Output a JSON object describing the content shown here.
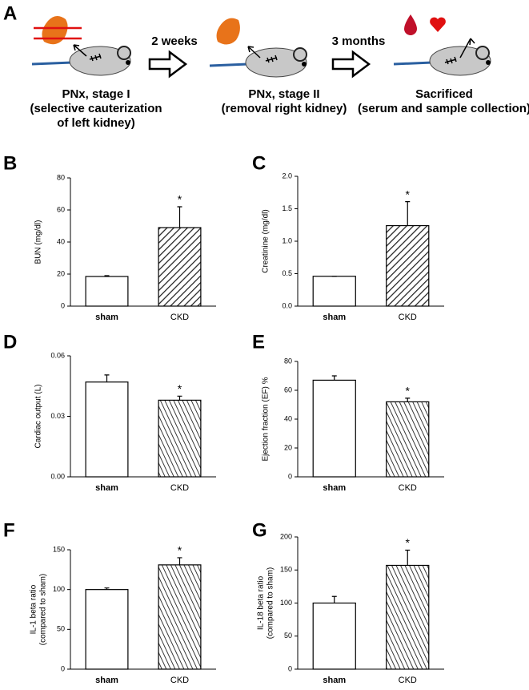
{
  "schematic": {
    "panel": "A",
    "steps": [
      [
        "PNx, stage I",
        "(selective cauterization",
        "of left kidney)"
      ],
      [
        "PNx, stage II",
        "(removal right kidney)"
      ],
      [
        "Sacrificed",
        "(serum and sample collection)"
      ]
    ],
    "intervals": [
      "2 weeks",
      "3 months"
    ]
  },
  "chart_data": [
    {
      "type": "bar",
      "panel": "B",
      "ylabel": [
        "BUN (mg/dl)"
      ],
      "categories": [
        "sham",
        "CKD"
      ],
      "values": [
        18.5,
        49
      ],
      "errors": [
        0.5,
        13
      ],
      "annotation": "*",
      "ylim": [
        0,
        80
      ],
      "yticks": [
        0,
        20,
        40,
        60,
        80
      ]
    },
    {
      "type": "bar",
      "panel": "C",
      "ylabel": [
        "Creatinine (mg/dl)"
      ],
      "categories": [
        "sham",
        "CKD"
      ],
      "values": [
        0.46,
        1.24
      ],
      "errors": [
        0,
        0.37
      ],
      "annotation": "*",
      "ylim": [
        0,
        2
      ],
      "yticks": [
        {
          "value": 0,
          "label": "0.0"
        },
        {
          "value": 0.5,
          "label": "0.5"
        },
        {
          "value": 1,
          "label": "1.0"
        },
        {
          "value": 1.5,
          "label": "1.5"
        },
        {
          "value": 2,
          "label": "2.0"
        }
      ]
    },
    {
      "type": "bar",
      "panel": "D",
      "ylabel": [
        "Cardiac output (L)"
      ],
      "categories": [
        "sham",
        "CKD"
      ],
      "values": [
        0.047,
        0.038
      ],
      "errors": [
        0.0035,
        0.002
      ],
      "annotation": "*",
      "ylim": [
        0,
        0.06
      ],
      "yticks": [
        {
          "value": 0,
          "label": "0.00"
        },
        {
          "value": 0.03,
          "label": "0.03"
        },
        {
          "value": 0.06,
          "label": "0.06"
        }
      ]
    },
    {
      "type": "bar",
      "panel": "E",
      "ylabel": [
        "Ejection fraction (EF) %"
      ],
      "categories": [
        "sham",
        "CKD"
      ],
      "values": [
        67,
        52
      ],
      "errors": [
        3,
        2.5
      ],
      "annotation": "*",
      "ylim": [
        0,
        80
      ],
      "yticks": [
        0,
        20,
        40,
        60,
        80
      ]
    },
    {
      "type": "bar",
      "panel": "F",
      "ylabel": [
        "IL-1 beta ratio",
        "(compared to sham)"
      ],
      "categories": [
        "sham",
        "CKD"
      ],
      "values": [
        100,
        131
      ],
      "errors": [
        2,
        9
      ],
      "annotation": "*",
      "ylim": [
        0,
        150
      ],
      "yticks": [
        0,
        50,
        100,
        150
      ]
    },
    {
      "type": "bar",
      "panel": "G",
      "ylabel": [
        "IL-18 beta ratio",
        "(compared to sham)"
      ],
      "categories": [
        "sham",
        "CKD"
      ],
      "values": [
        100,
        157
      ],
      "errors": [
        10,
        23
      ],
      "annotation": "*",
      "ylim": [
        0,
        200
      ],
      "yticks": [
        0,
        50,
        100,
        150,
        200
      ]
    }
  ]
}
